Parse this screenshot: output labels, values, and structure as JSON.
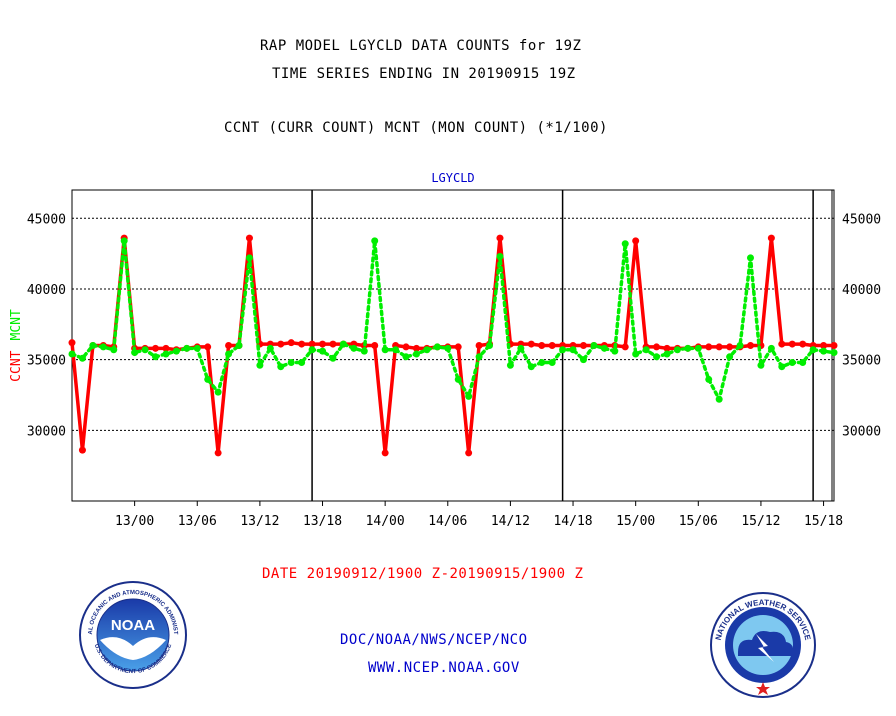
{
  "header": {
    "title_line1": "RAP MODEL LGYCLD DATA COUNTS for 19Z",
    "title_line2": "TIME SERIES ENDING IN 20190915 19Z",
    "subtitle": "CCNT (CURR COUNT) MCNT (MON COUNT) (*1/100)"
  },
  "footer": {
    "date_range": "DATE 20190912/1900 Z-20190915/1900 Z",
    "org_line": "DOC/NOAA/NWS/NCEP/NCO",
    "url_line": "WWW.NCEP.NOAA.GOV"
  },
  "logos": {
    "noaa_text": "NOAA",
    "noaa_ring": "NATIONAL OCEANIC AND ATMOSPHERIC ADMINISTRATION",
    "noaa_ring_bottom": "U.S. DEPARTMENT OF COMMERCE",
    "nws_ring": "NATIONAL WEATHER SERVICE"
  },
  "colors": {
    "ccnt": "#ff0000",
    "mcnt": "#00ee00",
    "axis_title": "#0000cc",
    "footer_date": "#ff0000",
    "footer_links": "#0000cc"
  },
  "chart_data": {
    "type": "line",
    "title": "LGYCLD",
    "ylabel_parts": [
      "CCNT",
      "MCNT"
    ],
    "ylim": [
      25000,
      47000
    ],
    "yticks": [
      30000,
      35000,
      40000,
      45000
    ],
    "ytick_labels": [
      "30000",
      "35000",
      "40000",
      "45000"
    ],
    "xlim": [
      0,
      73
    ],
    "x_unit": "hours from 20190912/1800 Z",
    "xticks": [
      6,
      12,
      18,
      24,
      30,
      36,
      42,
      48,
      54,
      60,
      66,
      72
    ],
    "xtick_labels": [
      "13/00",
      "13/06",
      "13/12",
      "13/18",
      "14/00",
      "14/06",
      "14/12",
      "14/18",
      "15/00",
      "15/06",
      "15/12",
      "15/18"
    ],
    "day_dividers": [
      23,
      47,
      71
    ],
    "grid": "horizontal dotted",
    "series": [
      {
        "name": "CCNT",
        "color": "#ff0000",
        "style": "solid",
        "values": [
          36200,
          28600,
          36000,
          36000,
          35900,
          43600,
          35800,
          35800,
          35800,
          35800,
          35700,
          35800,
          35900,
          35900,
          28400,
          36000,
          36000,
          43600,
          36100,
          36100,
          36100,
          36200,
          36100,
          36100,
          36100,
          36100,
          36100,
          36100,
          36000,
          36000,
          28400,
          36000,
          35900,
          35800,
          35800,
          35900,
          35900,
          35900,
          28400,
          36000,
          36100,
          43600,
          36100,
          36100,
          36100,
          36000,
          36000,
          36000,
          36000,
          36000,
          36000,
          36000,
          36000,
          35900,
          43400,
          35900,
          35900,
          35800,
          35800,
          35800,
          35900,
          35900,
          35900,
          35900,
          35900,
          36000,
          36000,
          43600,
          36100,
          36100,
          36100,
          36000,
          36000,
          36000
        ]
      },
      {
        "name": "MCNT",
        "color": "#00ee00",
        "style": "dotted",
        "values": [
          35400,
          35100,
          36000,
          35900,
          35700,
          43400,
          35500,
          35700,
          35200,
          35400,
          35600,
          35800,
          35800,
          33600,
          32700,
          35400,
          36000,
          42200,
          34600,
          35800,
          34500,
          34800,
          34800,
          35700,
          35600,
          35100,
          36100,
          35800,
          35600,
          43400,
          35700,
          35700,
          35200,
          35400,
          35700,
          35900,
          35800,
          33600,
          32400,
          35200,
          36000,
          42300,
          34600,
          35800,
          34500,
          34800,
          34800,
          35700,
          35700,
          35000,
          36000,
          35800,
          35600,
          43200,
          35400,
          35700,
          35200,
          35400,
          35700,
          35800,
          35800,
          33600,
          32200,
          35200,
          36000,
          42200,
          34600,
          35800,
          34500,
          34800,
          34800,
          35700,
          35600,
          35500
        ]
      }
    ]
  }
}
